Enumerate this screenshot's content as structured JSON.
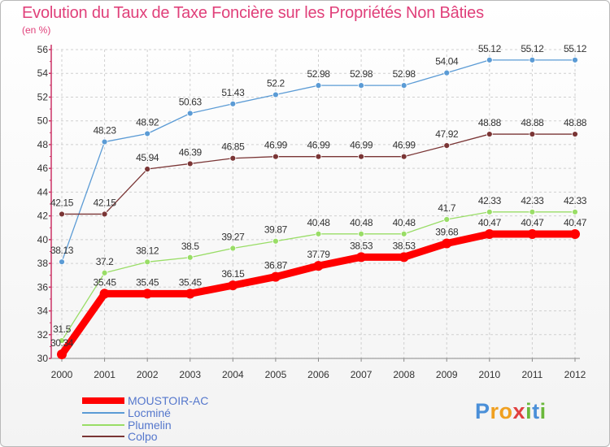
{
  "chart_data": {
    "type": "line",
    "title": "Evolution du Taux de Taxe Foncière sur les Propriétés Non Bâties",
    "unit_label": "(en %)",
    "x": [
      "2000",
      "2001",
      "2002",
      "2003",
      "2004",
      "2005",
      "2006",
      "2007",
      "2008",
      "2009",
      "2010",
      "2011",
      "2012"
    ],
    "y_ticks": [
      "30",
      "32",
      "34",
      "36",
      "38",
      "40",
      "42",
      "44",
      "46",
      "48",
      "50",
      "52",
      "54",
      "56"
    ],
    "ylim": [
      30,
      56
    ],
    "grid": true,
    "legend_position": "bottom-left",
    "series": [
      {
        "name": "MOUSTOIR-AC",
        "color": "#ff0000",
        "values": [
          30.34,
          35.45,
          35.45,
          35.45,
          36.15,
          36.87,
          37.79,
          38.53,
          38.53,
          39.68,
          40.47,
          40.47,
          40.47
        ],
        "labels": [
          "30.34",
          "35.45",
          "35.45",
          "35.45",
          "36.15",
          "36.87",
          "37.79",
          "38.53",
          "38.53",
          "39.68",
          "40.47",
          "40.47",
          "40.47"
        ]
      },
      {
        "name": "Locminé",
        "color": "#5b9bd5",
        "values": [
          38.13,
          48.23,
          48.92,
          50.63,
          51.43,
          52.2,
          52.98,
          52.98,
          52.98,
          54.04,
          55.12,
          55.12,
          55.12
        ],
        "labels": [
          "38.13",
          "48.23",
          "48.92",
          "50.63",
          "51.43",
          "52.2",
          "52.98",
          "52.98",
          "52.98",
          "54.04",
          "55.12",
          "55.12",
          "55.12"
        ]
      },
      {
        "name": "Plumelin",
        "color": "#99dd66",
        "values": [
          31.5,
          37.2,
          38.12,
          38.5,
          39.27,
          39.87,
          40.48,
          40.48,
          40.48,
          41.7,
          42.33,
          42.33,
          42.33
        ],
        "labels": [
          "31.5",
          "37.2",
          "38.12",
          "38.5",
          "39.27",
          "39.87",
          "40.48",
          "40.48",
          "40.48",
          "41.7",
          "42.33",
          "42.33",
          "42.33"
        ]
      },
      {
        "name": "Colpo",
        "color": "#7a3535",
        "values": [
          42.15,
          42.15,
          45.94,
          46.39,
          46.85,
          46.99,
          46.99,
          46.99,
          46.99,
          47.92,
          48.88,
          48.88,
          48.88
        ],
        "labels": [
          "42.15",
          "42.15",
          "45.94",
          "46.39",
          "46.85",
          "46.99",
          "46.99",
          "46.99",
          "46.99",
          "47.92",
          "48.88",
          "48.88",
          "48.88"
        ]
      }
    ]
  },
  "brand": {
    "letters": [
      "P",
      "r",
      "o",
      "x",
      "i",
      "t",
      "i"
    ],
    "colors": [
      "#4a8fd8",
      "#f0a020",
      "#f0a020",
      "#e04040",
      "#6ab83a",
      "#4a8fd8",
      "#6ab83a"
    ]
  }
}
